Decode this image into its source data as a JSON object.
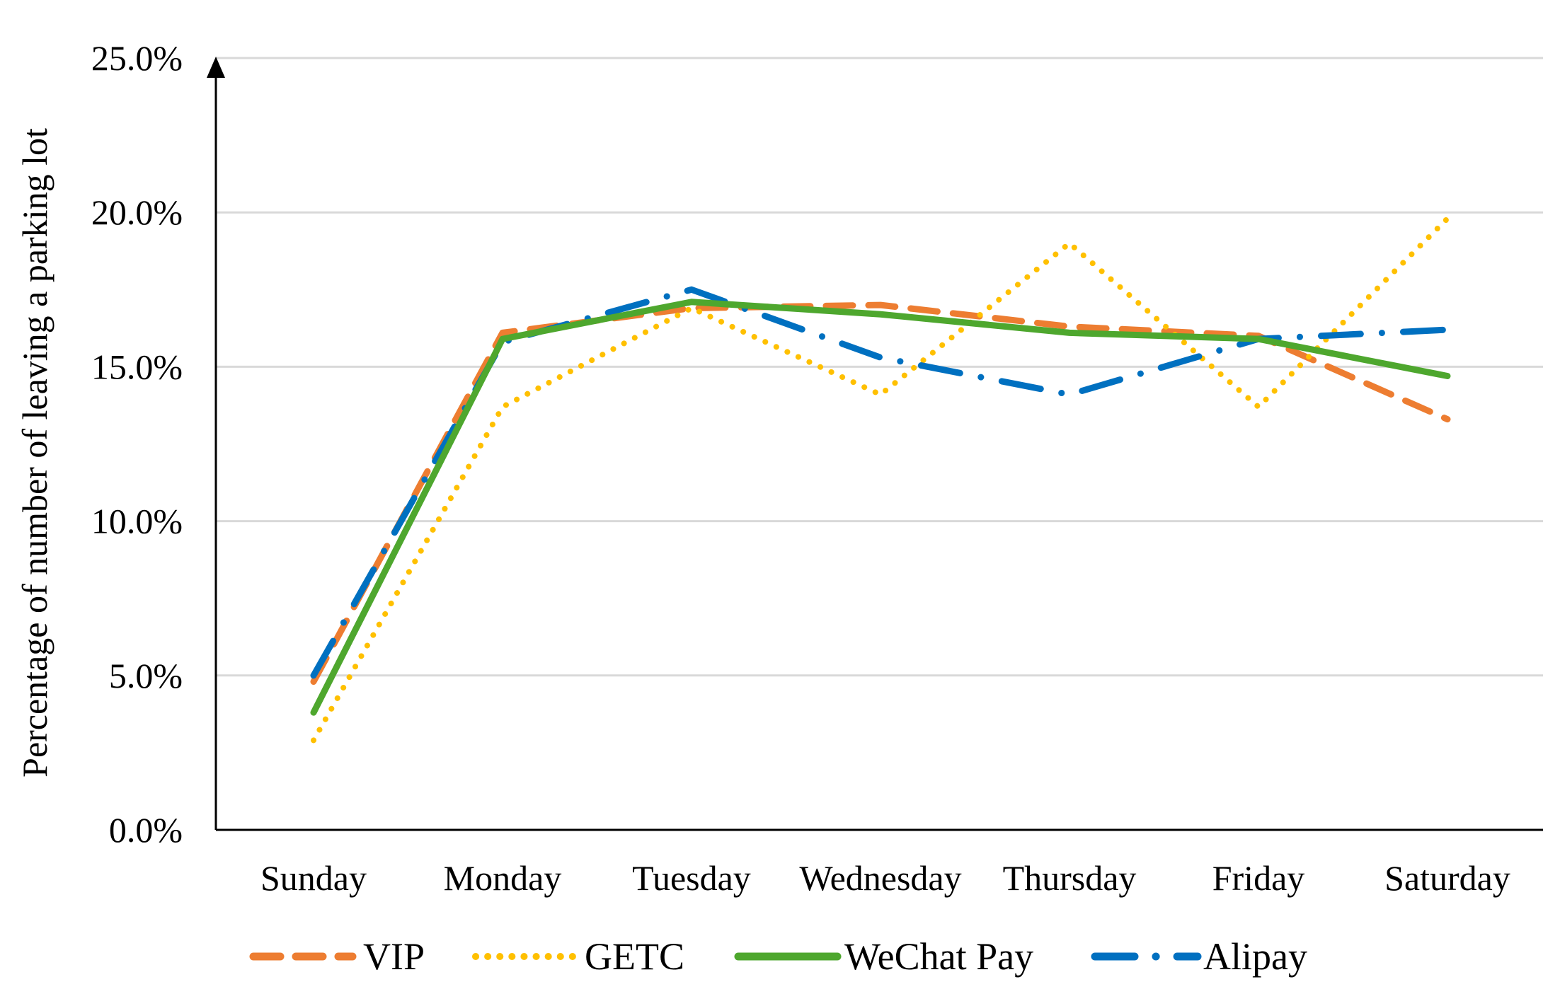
{
  "chart_data": {
    "type": "line",
    "title": "",
    "xlabel": "",
    "ylabel": "Percentage of number of leaving a parking lot",
    "categories": [
      "Sunday",
      "Monday",
      "Tuesday",
      "Wednesday",
      "Thursday",
      "Friday",
      "Saturday"
    ],
    "ylim": [
      0,
      25
    ],
    "yticks": [
      0,
      5,
      10,
      15,
      20,
      25
    ],
    "ytick_labels": [
      "0.0%",
      "5.0%",
      "10.0%",
      "15.0%",
      "20.0%",
      "25.0%"
    ],
    "grid": true,
    "legend_position": "bottom",
    "series": [
      {
        "name": "VIP",
        "values": [
          4.8,
          16.1,
          16.9,
          17.0,
          16.3,
          16.0,
          13.3
        ],
        "color": "#ED7D31",
        "dash": "dashed"
      },
      {
        "name": "GETC",
        "values": [
          2.9,
          13.7,
          16.9,
          14.1,
          19.0,
          13.7,
          19.8
        ],
        "color": "#FFC000",
        "dash": "dotted"
      },
      {
        "name": "WeChat Pay",
        "values": [
          3.8,
          15.9,
          17.1,
          16.7,
          16.1,
          15.9,
          14.7
        ],
        "color": "#4EA72E",
        "dash": "solid"
      },
      {
        "name": "Alipay",
        "values": [
          5.0,
          15.8,
          17.5,
          15.3,
          14.1,
          15.9,
          16.2
        ],
        "color": "#0070C0",
        "dash": "dashdot"
      }
    ]
  }
}
